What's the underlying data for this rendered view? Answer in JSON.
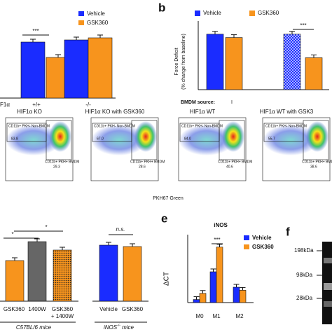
{
  "panel_a": {
    "legend": [
      "Vehicle",
      "GSK360"
    ],
    "significance": "***",
    "row_label": "F1α",
    "groups": [
      "+/+",
      "-/-"
    ],
    "vehicle": [
      80,
      83
    ],
    "gsk360": [
      58,
      86
    ]
  },
  "panel_b": {
    "label": "b",
    "legend": [
      "Vehicle",
      "GSK360"
    ],
    "y_label_1": "Force Deficit",
    "y_label_2": "(% change from baseline)",
    "significance": "***",
    "source_label": "BMDM source:",
    "source_mark": "I",
    "values": [
      33,
      31,
      33,
      19
    ]
  },
  "flow": {
    "plots": [
      {
        "title": "HIF1α KO",
        "upper": "83.8",
        "lower": "29.3"
      },
      {
        "title": "HIF1α KO with GSK360",
        "upper": "67.0",
        "lower": "28.6"
      },
      {
        "title": "HIF1α WT",
        "upper": "84.0",
        "lower": "40.6"
      },
      {
        "title": "HIF1α WT with GSK3",
        "upper": "55.7",
        "lower": "38.6"
      }
    ],
    "gate_upper": "CD11b+ PKH- Non-BMDM",
    "gate_lower": "CD11b+ PKH+ BMDM",
    "x_label": "PKH67 Green"
  },
  "panel_d": {
    "categories": [
      "GSK360",
      "1400W",
      "GSK360",
      "Vehicle",
      "GSK360"
    ],
    "combo_line_2": "+ 1400W",
    "values": [
      58,
      85,
      73,
      80,
      78
    ],
    "sig_1": "*",
    "sig_2": "*",
    "sig_ns": "n.s.",
    "group_1": "C57BL/6 mice",
    "group_2": "iNOS",
    "group_2_sup": "-/-",
    "group_2_tail": " mice"
  },
  "panel_e": {
    "label": "e",
    "title": "iNOS",
    "legend": [
      "Vehicle",
      "GSK360"
    ],
    "y_label": "ΔCT",
    "categories": [
      "M0",
      "M1",
      "M2"
    ],
    "vehicle": [
      1,
      10,
      5
    ],
    "gsk360": [
      3,
      18,
      4
    ],
    "significance": "***"
  },
  "panel_f": {
    "label": "f",
    "markers": [
      "198kDa",
      "98kDa",
      "28kDa"
    ]
  }
}
